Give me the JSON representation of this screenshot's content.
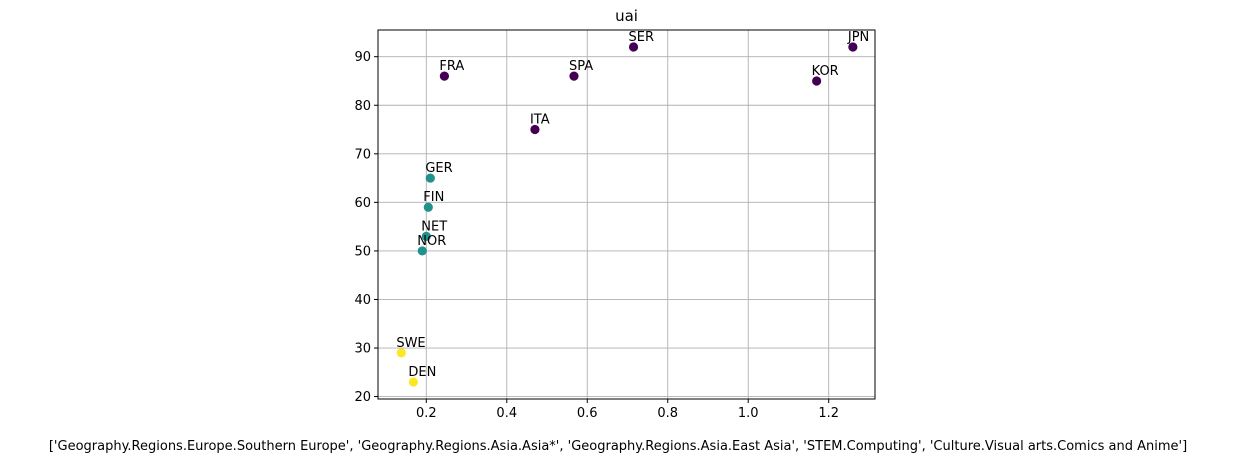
{
  "chart_data": {
    "type": "scatter",
    "title": "uai",
    "xlabel": "['Geography.Regions.Europe.Southern Europe', 'Geography.Regions.Asia.Asia*', 'Geography.Regions.Asia.East Asia', 'STEM.Computing', 'Culture.Visual arts.Comics and Anime']",
    "ylabel": "",
    "xlim": [
      0.08,
      1.315
    ],
    "ylim": [
      19.5,
      95.5
    ],
    "xticks": [
      0.2,
      0.4,
      0.6,
      0.8,
      1.0,
      1.2
    ],
    "xtick_labels": [
      "0.2",
      "0.4",
      "0.6",
      "0.8",
      "1.0",
      "1.2"
    ],
    "yticks": [
      20,
      30,
      40,
      50,
      60,
      70,
      80,
      90
    ],
    "ytick_labels": [
      "20",
      "30",
      "40",
      "50",
      "60",
      "70",
      "80",
      "90"
    ],
    "grid": true,
    "colors": {
      "cluster_a": "#440154",
      "cluster_b": "#21918c",
      "cluster_c": "#fde725"
    },
    "points": [
      {
        "label": "JPN",
        "x": 1.26,
        "y": 92,
        "cluster": "cluster_a"
      },
      {
        "label": "SER",
        "x": 0.715,
        "y": 92,
        "cluster": "cluster_a"
      },
      {
        "label": "FRA",
        "x": 0.245,
        "y": 86,
        "cluster": "cluster_a"
      },
      {
        "label": "SPA",
        "x": 0.567,
        "y": 86,
        "cluster": "cluster_a"
      },
      {
        "label": "KOR",
        "x": 1.17,
        "y": 85,
        "cluster": "cluster_a"
      },
      {
        "label": "ITA",
        "x": 0.47,
        "y": 75,
        "cluster": "cluster_a"
      },
      {
        "label": "GER",
        "x": 0.21,
        "y": 65,
        "cluster": "cluster_b"
      },
      {
        "label": "FIN",
        "x": 0.205,
        "y": 59,
        "cluster": "cluster_b"
      },
      {
        "label": "NET",
        "x": 0.2,
        "y": 53,
        "cluster": "cluster_b"
      },
      {
        "label": "NOR",
        "x": 0.19,
        "y": 50,
        "cluster": "cluster_b"
      },
      {
        "label": "SWE",
        "x": 0.138,
        "y": 29,
        "cluster": "cluster_c"
      },
      {
        "label": "DEN",
        "x": 0.168,
        "y": 23,
        "cluster": "cluster_c"
      }
    ]
  }
}
